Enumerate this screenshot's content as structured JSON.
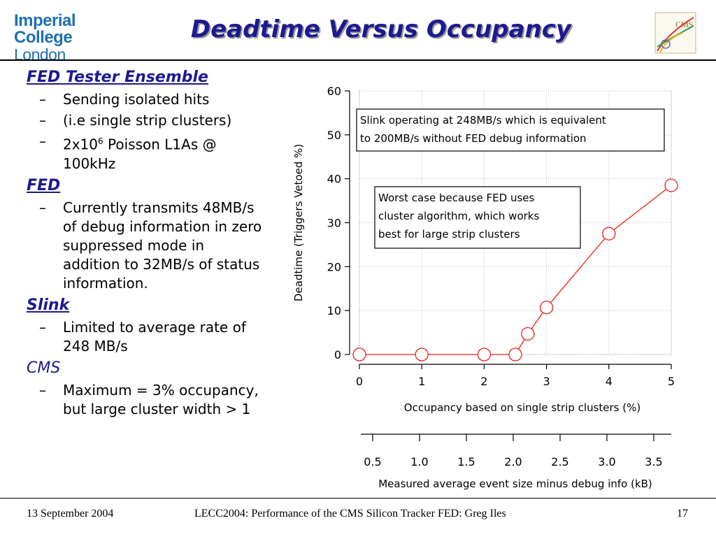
{
  "header": {
    "logo_line1": "Imperial College",
    "logo_line2": "London",
    "title": "Deadtime Versus Occupancy",
    "cms_logo_text": "CMS"
  },
  "left_panel": {
    "fed_tester_heading": "FED Tester Ensemble",
    "fed_tester_bullets": [
      "Sending isolated hits",
      "(i.e single strip clusters)"
    ],
    "poisson_prefix": "2x10",
    "poisson_exp": "6",
    "poisson_suffix": " Poisson L1As @ 100kHz",
    "fed_heading": "FED",
    "fed_bullet": "Currently transmits 48MB/s of debug information in zero suppressed mode in addition to 32MB/s of status information.",
    "slink_heading": "Slink",
    "slink_bullet": "Limited to average rate of 248 MB/s",
    "cms_heading": "CMS",
    "cms_bullet": "Maximum = 3% occupancy, but large cluster width > 1",
    "dash": "–"
  },
  "chart_data": {
    "type": "line",
    "x": [
      0,
      1,
      2,
      2.5,
      2.7,
      3,
      4,
      5
    ],
    "series": [
      {
        "values": [
          0,
          0,
          0,
          0,
          4.7,
          10.7,
          27.5,
          38.5
        ]
      }
    ],
    "xlabel": "Occupancy based on single strip clusters (%)",
    "ylabel": "Deadtime (Triggers Vetoed %)",
    "xlim": [
      0,
      5
    ],
    "ylim": [
      0,
      60
    ],
    "x_ticks": [
      "0",
      "1",
      "2",
      "3",
      "4",
      "5"
    ],
    "y_ticks": [
      "0",
      "10",
      "20",
      "30",
      "40",
      "50",
      "60"
    ],
    "secondary_x_axis": {
      "label": "Measured average event size minus debug info (kB)",
      "ticks": [
        "0.5",
        "1.0",
        "1.5",
        "2.0",
        "2.5",
        "3.0",
        "3.5"
      ]
    },
    "grid": true,
    "line_color": "#e8201a",
    "annotations": [
      "Slink operating at 248MB/s which is equivalent to 200MB/s without FED debug information",
      "Worst case because FED uses cluster algorithm, which works best for large strip clusters"
    ]
  },
  "footer": {
    "date": "13 September 2004",
    "center": "LECC2004: Performance of the CMS Silicon Tracker FED: Greg Iles",
    "page": "17"
  }
}
